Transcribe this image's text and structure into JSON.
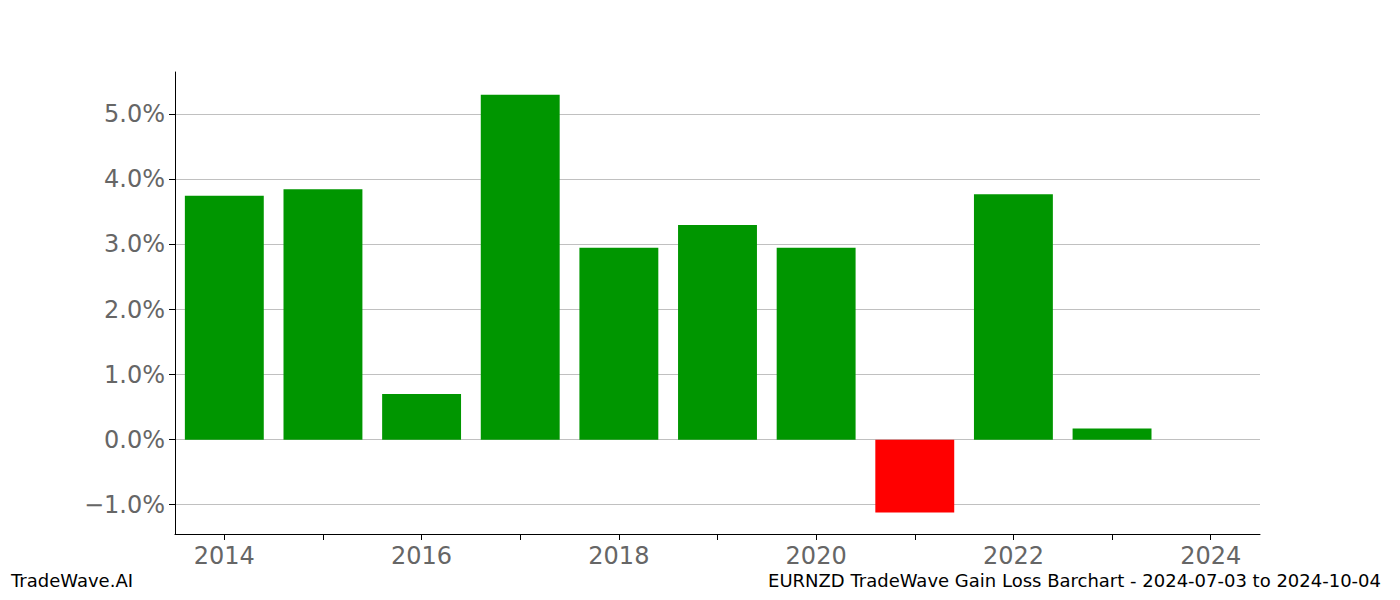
{
  "chart_data": {
    "type": "bar",
    "title": "EURNZD TradeWave Gain Loss Barchart - 2024-07-03 to 2024-10-04",
    "annotations": [
      "TradeWave.AI"
    ],
    "categories": [
      "2014",
      null,
      "2016",
      null,
      "2018",
      null,
      "2020",
      null,
      "2022",
      null,
      "2024"
    ],
    "values": [
      3.75,
      3.85,
      0.7,
      5.3,
      2.95,
      3.3,
      2.95,
      -1.12,
      3.77,
      0.17,
      0
    ],
    "colors": [
      "#009600",
      "#009600",
      "#009600",
      "#009600",
      "#009600",
      "#009600",
      "#009600",
      "#ff0000",
      "#009600",
      "#009600",
      "#009600"
    ],
    "ylim": [
      -1.45,
      5.65
    ],
    "yticks": [
      {
        "value": -1,
        "label": "−1.0%"
      },
      {
        "value": 0,
        "label": "0.0%"
      },
      {
        "value": 1,
        "label": "1.0%"
      },
      {
        "value": 2,
        "label": "2.0%"
      },
      {
        "value": 3,
        "label": "3.0%"
      },
      {
        "value": 4,
        "label": "4.0%"
      },
      {
        "value": 5,
        "label": "5.0%"
      }
    ],
    "grid": true
  }
}
